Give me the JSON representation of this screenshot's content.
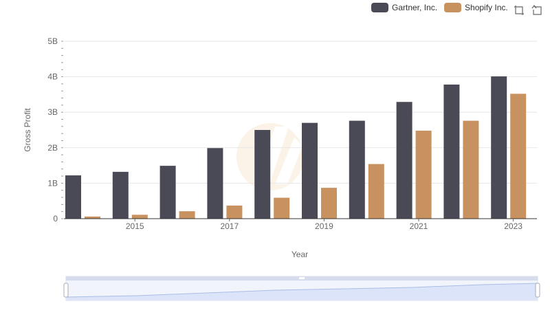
{
  "colors": {
    "gartner": "#4a4a56",
    "shopify": "#c89260",
    "grid": "#e6e6e6",
    "axis": "#333333",
    "zoom_fill": "#dbe4f8"
  },
  "legend": {
    "series1": "Gartner, Inc.",
    "series2": "Shopify Inc."
  },
  "toolbar": {
    "icons": [
      "zoom-icon",
      "restore-icon"
    ]
  },
  "chart_data": {
    "type": "bar",
    "xlabel": "Year",
    "ylabel": "Gross Profit",
    "categories": [
      "2014",
      "2015",
      "2016",
      "2017",
      "2018",
      "2019",
      "2020",
      "2021",
      "2022",
      "2023"
    ],
    "x_tick_labels": [
      "2015",
      "2017",
      "2019",
      "2021",
      "2023"
    ],
    "y_tick_labels": [
      "0",
      "1B",
      "2B",
      "3B",
      "4B",
      "5B"
    ],
    "ylim": [
      0,
      5000000000
    ],
    "grid": true,
    "legend_position": "top-right",
    "series": [
      {
        "name": "Gartner, Inc.",
        "values": [
          1220000000,
          1320000000,
          1490000000,
          1990000000,
          2500000000,
          2700000000,
          2760000000,
          3290000000,
          3780000000,
          4010000000
        ]
      },
      {
        "name": "Shopify Inc.",
        "values": [
          60000000,
          110000000,
          210000000,
          370000000,
          590000000,
          870000000,
          1540000000,
          2480000000,
          2760000000,
          3520000000
        ]
      }
    ]
  }
}
